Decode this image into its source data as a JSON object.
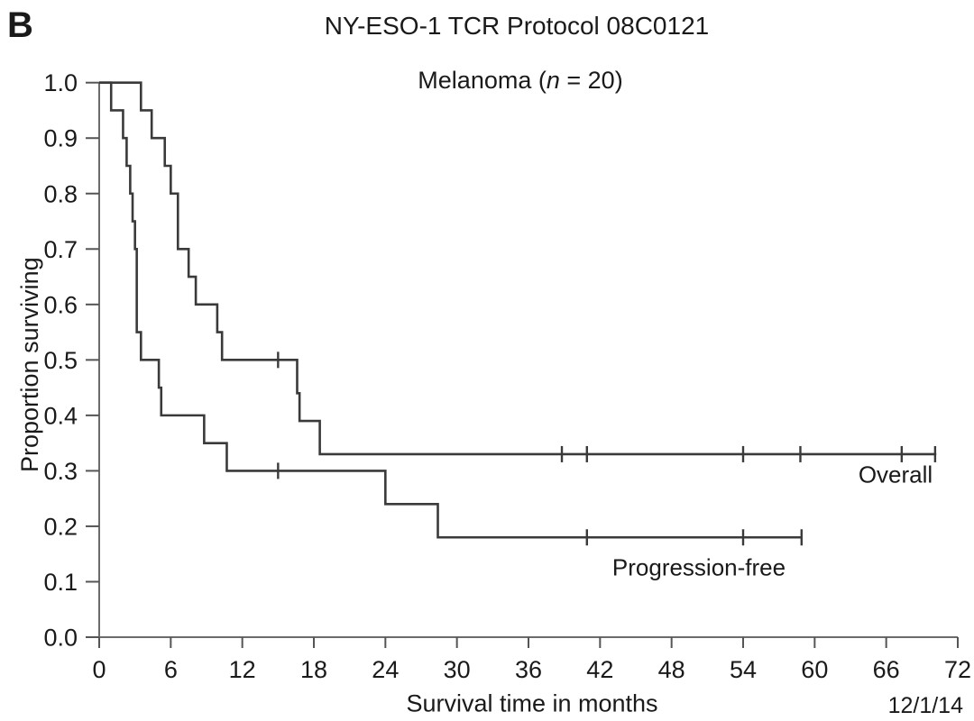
{
  "panel_label": "B",
  "header": {
    "title": "NY-ESO-1 TCR Protocol 08C0121",
    "subtitle_prefix": "Melanoma (",
    "subtitle_n": "n",
    "subtitle_suffix": " = 20)"
  },
  "footer": {
    "date": "12/1/14"
  },
  "chart_data": {
    "type": "line",
    "subtype": "kaplan-meier-step",
    "title": "NY-ESO-1 TCR Protocol 08C0121",
    "subtitle": "Melanoma (n = 20)",
    "group": "Melanoma",
    "n": 20,
    "xlabel": "Survival time in months",
    "ylabel": "Proportion surviving",
    "xlim": [
      0,
      72
    ],
    "ylim": [
      0.0,
      1.0
    ],
    "xticks": [
      0,
      6,
      12,
      18,
      24,
      30,
      36,
      42,
      48,
      54,
      60,
      66,
      72
    ],
    "ytick_labels": [
      "0.0",
      "0.1",
      "0.2",
      "0.3",
      "0.4",
      "0.5",
      "0.6",
      "0.7",
      "0.8",
      "0.9",
      "1.0"
    ],
    "grid": false,
    "legend_position": "labels-on-plot",
    "annotation_date": "12/1/14",
    "series": [
      {
        "name": "Overall",
        "label": "Overall",
        "start": [
          0,
          1.0
        ],
        "steps": [
          [
            3.5,
            0.95
          ],
          [
            4.4,
            0.9
          ],
          [
            5.5,
            0.85
          ],
          [
            6.0,
            0.8
          ],
          [
            6.6,
            0.7
          ],
          [
            7.5,
            0.65
          ],
          [
            8.1,
            0.6
          ],
          [
            9.9,
            0.55
          ],
          [
            10.3,
            0.5
          ],
          [
            16.6,
            0.44
          ],
          [
            16.8,
            0.39
          ],
          [
            18.5,
            0.33
          ]
        ],
        "end_time": 70.2,
        "final_proportion": 0.33,
        "censor_marks": [
          [
            15.0,
            0.5
          ],
          [
            38.8,
            0.33
          ],
          [
            40.9,
            0.33
          ],
          [
            54.0,
            0.33
          ],
          [
            58.8,
            0.33
          ],
          [
            67.3,
            0.33
          ],
          [
            70.1,
            0.33
          ]
        ]
      },
      {
        "name": "Progression-free",
        "label": "Progression-free",
        "start": [
          0,
          1.0
        ],
        "steps": [
          [
            1.0,
            0.95
          ],
          [
            2.0,
            0.9
          ],
          [
            2.3,
            0.85
          ],
          [
            2.6,
            0.8
          ],
          [
            2.8,
            0.75
          ],
          [
            3.0,
            0.7
          ],
          [
            3.15,
            0.55
          ],
          [
            3.5,
            0.5
          ],
          [
            5.0,
            0.45
          ],
          [
            5.2,
            0.4
          ],
          [
            8.8,
            0.35
          ],
          [
            10.7,
            0.3
          ],
          [
            24.0,
            0.24
          ],
          [
            28.4,
            0.18
          ]
        ],
        "end_time": 58.9,
        "final_proportion": 0.18,
        "censor_marks": [
          [
            15.0,
            0.3
          ],
          [
            40.9,
            0.18
          ],
          [
            54.0,
            0.18
          ],
          [
            58.9,
            0.18
          ]
        ]
      }
    ],
    "colors": {
      "curve": "#3a3a3a",
      "axis": "#6b6b6b",
      "tick": "#555555",
      "text": "#1a1a1a",
      "background": "#ffffff"
    }
  }
}
